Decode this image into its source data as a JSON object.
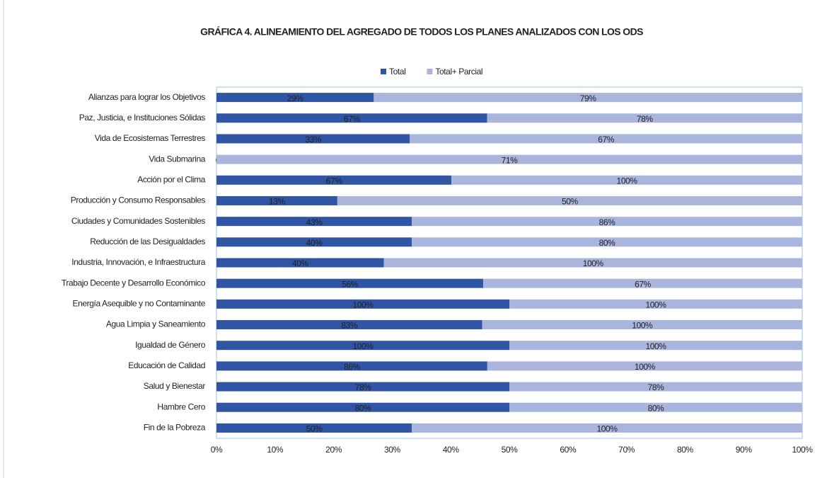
{
  "chart_data": {
    "type": "bar",
    "stacked": "percent",
    "orientation": "horizontal",
    "title": "GRÁFICA 4. ALINEAMIENTO DEL AGREGADO DE TODOS LOS PLANES ANALIZADOS CON LOS ODS",
    "categories": [
      "Alianzas para lograr los Objetivos",
      "Paz, Justicia, e Instituciones Sólidas",
      "Vida de Ecosistemas Terrestres",
      "Vida Submarina",
      "Acción por el Clima",
      "Producción y Consumo Responsables",
      "Ciudades y Comunidades Sostenibles",
      "Reducción de las Desigualdades",
      "Industria, Innovación, e Infraestructura",
      "Trabajo Decente y Desarrollo Económico",
      "Energía Asequible y no Contaminante",
      "Agua Limpia y Saneamiento",
      "Igualdad de Género",
      "Educación de Calidad",
      "Salud y Bienestar",
      "Hambre Cero",
      "Fin de la Pobreza"
    ],
    "series": [
      {
        "name": "Total",
        "color": "#2f55a4",
        "values": [
          29,
          67,
          33,
          0,
          67,
          13,
          43,
          40,
          40,
          56,
          100,
          83,
          100,
          86,
          78,
          80,
          50
        ],
        "value_labels": [
          "29%",
          "67%",
          "33%",
          "0%",
          "67%",
          "13%",
          "43%",
          "40%",
          "40%",
          "56%",
          "100%",
          "83%",
          "100%",
          "86%",
          "78%",
          "80%",
          "50%"
        ]
      },
      {
        "name": "Total+ Parcial",
        "color": "#a9b5dc",
        "values": [
          79,
          78,
          67,
          71,
          100,
          50,
          86,
          80,
          100,
          67,
          100,
          100,
          100,
          100,
          78,
          80,
          100
        ],
        "value_labels": [
          "79%",
          "78%",
          "67%",
          "71%",
          "100%",
          "50%",
          "86%",
          "80%",
          "100%",
          "67%",
          "100%",
          "100%",
          "100%",
          "100%",
          "78%",
          "80%",
          "100%"
        ]
      }
    ],
    "xlim": [
      0,
      100
    ],
    "xticks": [
      {
        "value": 0,
        "label": "0%"
      },
      {
        "value": 10,
        "label": "10%"
      },
      {
        "value": 20,
        "label": "20%"
      },
      {
        "value": 30,
        "label": "30%"
      },
      {
        "value": 40,
        "label": "40%"
      },
      {
        "value": 50,
        "label": "50%"
      },
      {
        "value": 60,
        "label": "60%"
      },
      {
        "value": 70,
        "label": "70%"
      },
      {
        "value": 80,
        "label": "80%"
      },
      {
        "value": 90,
        "label": "90%"
      },
      {
        "value": 100,
        "label": "100%"
      }
    ],
    "legend": "top"
  }
}
